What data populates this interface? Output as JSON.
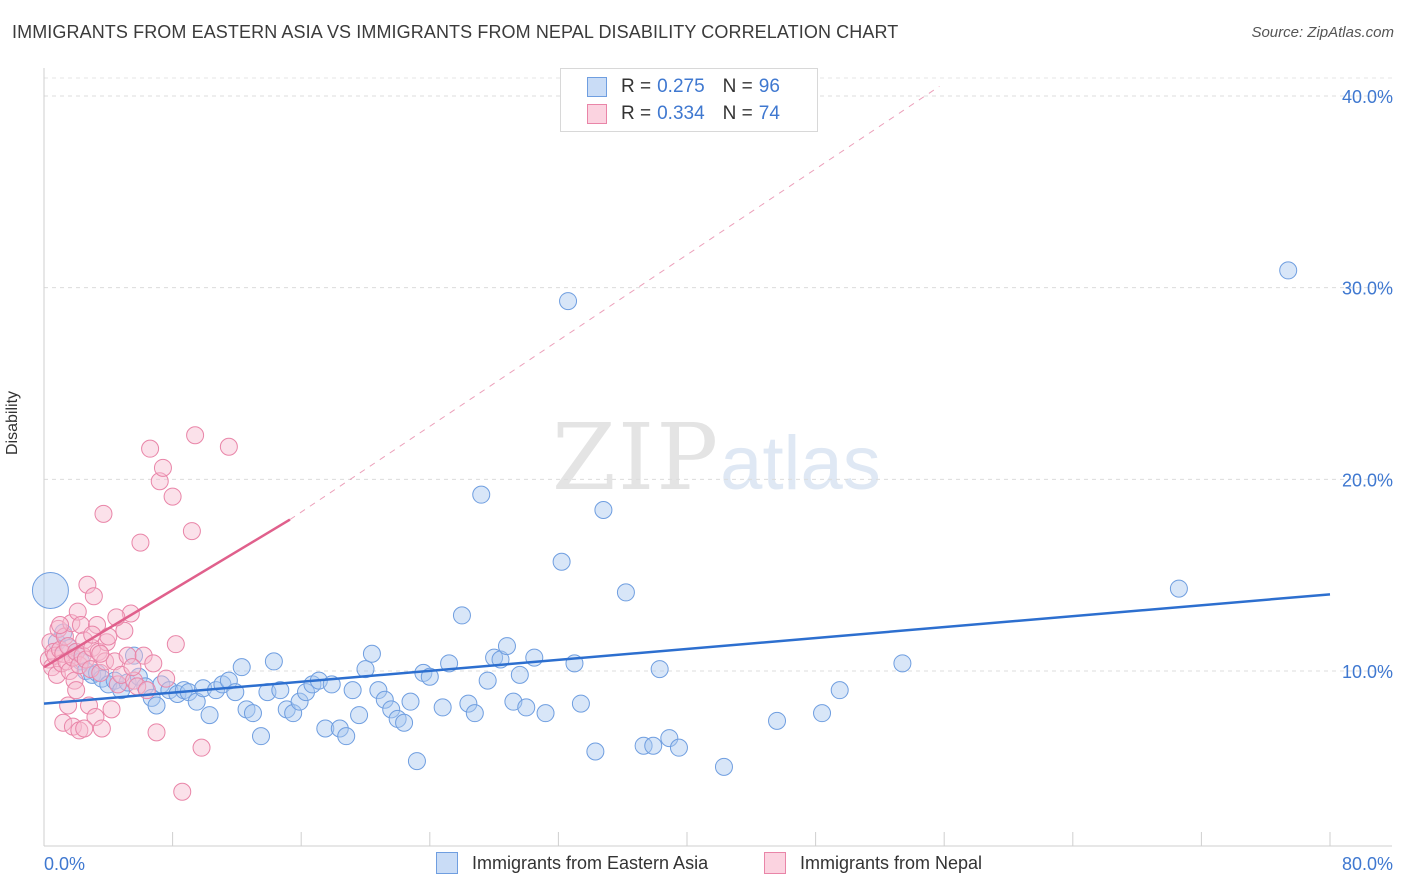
{
  "header": {
    "title": "IMMIGRANTS FROM EASTERN ASIA VS IMMIGRANTS FROM NEPAL DISABILITY CORRELATION CHART",
    "source": "Source: ZipAtlas.com"
  },
  "watermark": {
    "zip": "ZIP",
    "atlas": "atlas"
  },
  "legend": {
    "rows": [
      {
        "r_label": "R =",
        "r_value": "0.275",
        "n_label": "N =",
        "n_value": "96",
        "color": "#a9c8f0",
        "border": "#6f9ee0"
      },
      {
        "r_label": "R =",
        "r_value": "0.334",
        "n_label": "N =",
        "n_value": "74",
        "color": "#f7bcd0",
        "border": "#e985a8"
      }
    ]
  },
  "chart_data": {
    "type": "scatter",
    "title": "IMMIGRANTS FROM EASTERN ASIA VS IMMIGRANTS FROM NEPAL DISABILITY CORRELATION CHART",
    "xlabel": "",
    "ylabel": "Disability",
    "xlim": [
      0,
      80
    ],
    "ylim": [
      0,
      42
    ],
    "x_tick_labels": [
      "0.0%",
      "80.0%"
    ],
    "y_ticks": [
      10,
      20,
      30,
      40
    ],
    "y_tick_labels": [
      "10.0%",
      "20.0%",
      "30.0%",
      "40.0%"
    ],
    "grid": true,
    "legend_position": "top-center",
    "series": [
      {
        "name": "Immigrants from Eastern Asia",
        "color": "#a9c8f0",
        "stroke": "#6f9ee0",
        "line_color": "#2d6fcf",
        "trend": {
          "x": [
            0,
            80
          ],
          "y": [
            8.3,
            14.0
          ],
          "dashed_extension": false
        },
        "points": [
          [
            0.4,
            14.2,
            "big"
          ],
          [
            0.8,
            11.5
          ],
          [
            1.2,
            12.0
          ],
          [
            1.6,
            11.2
          ],
          [
            2.0,
            11.0
          ],
          [
            2.3,
            10.5
          ],
          [
            2.6,
            10.0
          ],
          [
            3.0,
            9.8
          ],
          [
            3.3,
            9.9
          ],
          [
            3.6,
            9.6
          ],
          [
            4.0,
            9.3
          ],
          [
            4.4,
            9.5
          ],
          [
            4.8,
            9.0
          ],
          [
            5.2,
            9.4
          ],
          [
            5.6,
            10.8
          ],
          [
            5.9,
            9.7
          ],
          [
            6.3,
            9.2
          ],
          [
            6.7,
            8.6
          ],
          [
            7.0,
            8.2
          ],
          [
            7.3,
            9.3
          ],
          [
            7.8,
            9.0
          ],
          [
            8.3,
            8.8
          ],
          [
            8.7,
            9.0
          ],
          [
            9.0,
            8.9
          ],
          [
            9.5,
            8.4
          ],
          [
            9.9,
            9.1
          ],
          [
            10.3,
            7.7
          ],
          [
            10.7,
            9.0
          ],
          [
            11.1,
            9.3
          ],
          [
            11.5,
            9.5
          ],
          [
            11.9,
            8.9
          ],
          [
            12.3,
            10.2
          ],
          [
            12.6,
            8.0
          ],
          [
            13.0,
            7.8
          ],
          [
            13.5,
            6.6
          ],
          [
            13.9,
            8.9
          ],
          [
            14.3,
            10.5
          ],
          [
            14.7,
            9.0
          ],
          [
            15.1,
            8.0
          ],
          [
            15.5,
            7.8
          ],
          [
            15.9,
            8.4
          ],
          [
            16.3,
            8.9
          ],
          [
            16.7,
            9.3
          ],
          [
            17.1,
            9.5
          ],
          [
            17.5,
            7.0
          ],
          [
            17.9,
            9.3
          ],
          [
            18.4,
            7.0
          ],
          [
            18.8,
            6.6
          ],
          [
            19.2,
            9.0
          ],
          [
            19.6,
            7.7
          ],
          [
            20.0,
            10.1
          ],
          [
            20.4,
            10.9
          ],
          [
            20.8,
            9.0
          ],
          [
            21.2,
            8.5
          ],
          [
            21.6,
            8.0
          ],
          [
            22.0,
            7.5
          ],
          [
            22.4,
            7.3
          ],
          [
            22.8,
            8.4
          ],
          [
            23.2,
            5.3
          ],
          [
            23.6,
            9.9
          ],
          [
            24.0,
            9.7
          ],
          [
            24.8,
            8.1
          ],
          [
            25.2,
            10.4
          ],
          [
            26.0,
            12.9
          ],
          [
            26.4,
            8.3
          ],
          [
            26.8,
            7.8
          ],
          [
            27.2,
            19.2
          ],
          [
            27.6,
            9.5
          ],
          [
            28.0,
            10.7
          ],
          [
            28.4,
            10.6
          ],
          [
            28.8,
            11.3
          ],
          [
            29.2,
            8.4
          ],
          [
            29.6,
            9.8
          ],
          [
            30.0,
            8.1
          ],
          [
            30.5,
            10.7
          ],
          [
            31.2,
            7.8
          ],
          [
            32.2,
            15.7
          ],
          [
            32.6,
            29.3
          ],
          [
            33.0,
            10.4
          ],
          [
            33.4,
            8.3
          ],
          [
            34.3,
            5.8
          ],
          [
            34.8,
            18.4
          ],
          [
            36.2,
            14.1
          ],
          [
            37.3,
            6.1
          ],
          [
            37.9,
            6.1
          ],
          [
            38.3,
            10.1
          ],
          [
            38.9,
            6.5
          ],
          [
            39.5,
            6.0
          ],
          [
            42.3,
            5.0
          ],
          [
            45.6,
            7.4
          ],
          [
            48.4,
            7.8
          ],
          [
            49.5,
            9.0
          ],
          [
            53.4,
            10.4
          ],
          [
            70.6,
            14.3
          ],
          [
            77.4,
            30.9
          ]
        ]
      },
      {
        "name": "Immigrants from Nepal",
        "color": "#f7bcd0",
        "stroke": "#e985a8",
        "line_color": "#e0608c",
        "trend": {
          "x": [
            0,
            15.3
          ],
          "y": [
            10.2,
            17.9
          ],
          "dashed_extension": true,
          "dash_to": [
            55.7,
            40.5
          ]
        },
        "points": [
          [
            0.3,
            10.6
          ],
          [
            0.4,
            11.5
          ],
          [
            0.5,
            10.2
          ],
          [
            0.6,
            11.0
          ],
          [
            0.7,
            10.8
          ],
          [
            0.8,
            9.8
          ],
          [
            0.9,
            12.2
          ],
          [
            1.0,
            11.1
          ],
          [
            1.1,
            10.4
          ],
          [
            1.2,
            10.9
          ],
          [
            1.3,
            11.8
          ],
          [
            1.4,
            10.5
          ],
          [
            1.5,
            11.3
          ],
          [
            1.6,
            10.0
          ],
          [
            1.7,
            12.5
          ],
          [
            1.8,
            10.7
          ],
          [
            1.9,
            9.5
          ],
          [
            2.0,
            11.0
          ],
          [
            2.1,
            13.1
          ],
          [
            2.2,
            10.3
          ],
          [
            2.3,
            12.4
          ],
          [
            2.4,
            10.8
          ],
          [
            2.5,
            11.6
          ],
          [
            2.6,
            10.6
          ],
          [
            2.7,
            14.5
          ],
          [
            2.8,
            8.2
          ],
          [
            2.9,
            10.1
          ],
          [
            3.0,
            11.2
          ],
          [
            3.1,
            13.9
          ],
          [
            3.2,
            7.6
          ],
          [
            3.3,
            12.4
          ],
          [
            3.4,
            11.0
          ],
          [
            3.5,
            9.9
          ],
          [
            3.6,
            7.0
          ],
          [
            3.7,
            18.2
          ],
          [
            3.8,
            10.5
          ],
          [
            3.9,
            11.5
          ],
          [
            4.0,
            11.8
          ],
          [
            4.2,
            8.0
          ],
          [
            4.4,
            10.5
          ],
          [
            4.6,
            9.3
          ],
          [
            4.8,
            9.8
          ],
          [
            5.0,
            12.1
          ],
          [
            5.2,
            10.8
          ],
          [
            5.4,
            13.0
          ],
          [
            5.6,
            9.5
          ],
          [
            5.8,
            9.2
          ],
          [
            6.0,
            16.7
          ],
          [
            6.2,
            10.8
          ],
          [
            6.4,
            9.0
          ],
          [
            6.6,
            21.6
          ],
          [
            6.8,
            10.4
          ],
          [
            7.0,
            6.8
          ],
          [
            7.2,
            19.9
          ],
          [
            7.4,
            20.6
          ],
          [
            7.6,
            9.6
          ],
          [
            8.0,
            19.1
          ],
          [
            8.2,
            11.4
          ],
          [
            8.6,
            3.7
          ],
          [
            9.2,
            17.3
          ],
          [
            9.4,
            22.3
          ],
          [
            9.8,
            6.0
          ],
          [
            11.5,
            21.7
          ],
          [
            1.0,
            12.4
          ],
          [
            1.2,
            7.3
          ],
          [
            1.5,
            8.2
          ],
          [
            1.8,
            7.1
          ],
          [
            2.0,
            9.0
          ],
          [
            2.2,
            6.9
          ],
          [
            2.5,
            7.0
          ],
          [
            3.0,
            11.9
          ],
          [
            3.5,
            10.9
          ],
          [
            4.5,
            12.8
          ],
          [
            5.5,
            10.2
          ]
        ]
      }
    ]
  },
  "bottom_legend": {
    "items": [
      {
        "label": "Immigrants from Eastern Asia",
        "color": "#a9c8f0",
        "border": "#6f9ee0"
      },
      {
        "label": "Immigrants from Nepal",
        "color": "#f7bcd0",
        "border": "#e985a8"
      }
    ]
  }
}
